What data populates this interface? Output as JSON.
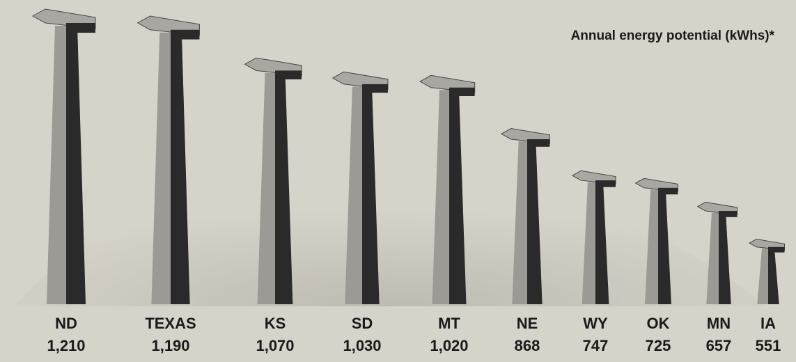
{
  "chart_data": {
    "type": "bar",
    "title": "Annual energy potential (kWhs)*",
    "categories": [
      "ND",
      "TEXAS",
      "KS",
      "SD",
      "MT",
      "NE",
      "WY",
      "OK",
      "MN",
      "IA"
    ],
    "values": [
      1210,
      1190,
      1070,
      1030,
      1020,
      868,
      747,
      725,
      657,
      551
    ],
    "value_labels": [
      "1,210",
      "1,190",
      "1,070",
      "1,030",
      "1,020",
      "868",
      "747",
      "725",
      "657",
      "551"
    ]
  }
}
